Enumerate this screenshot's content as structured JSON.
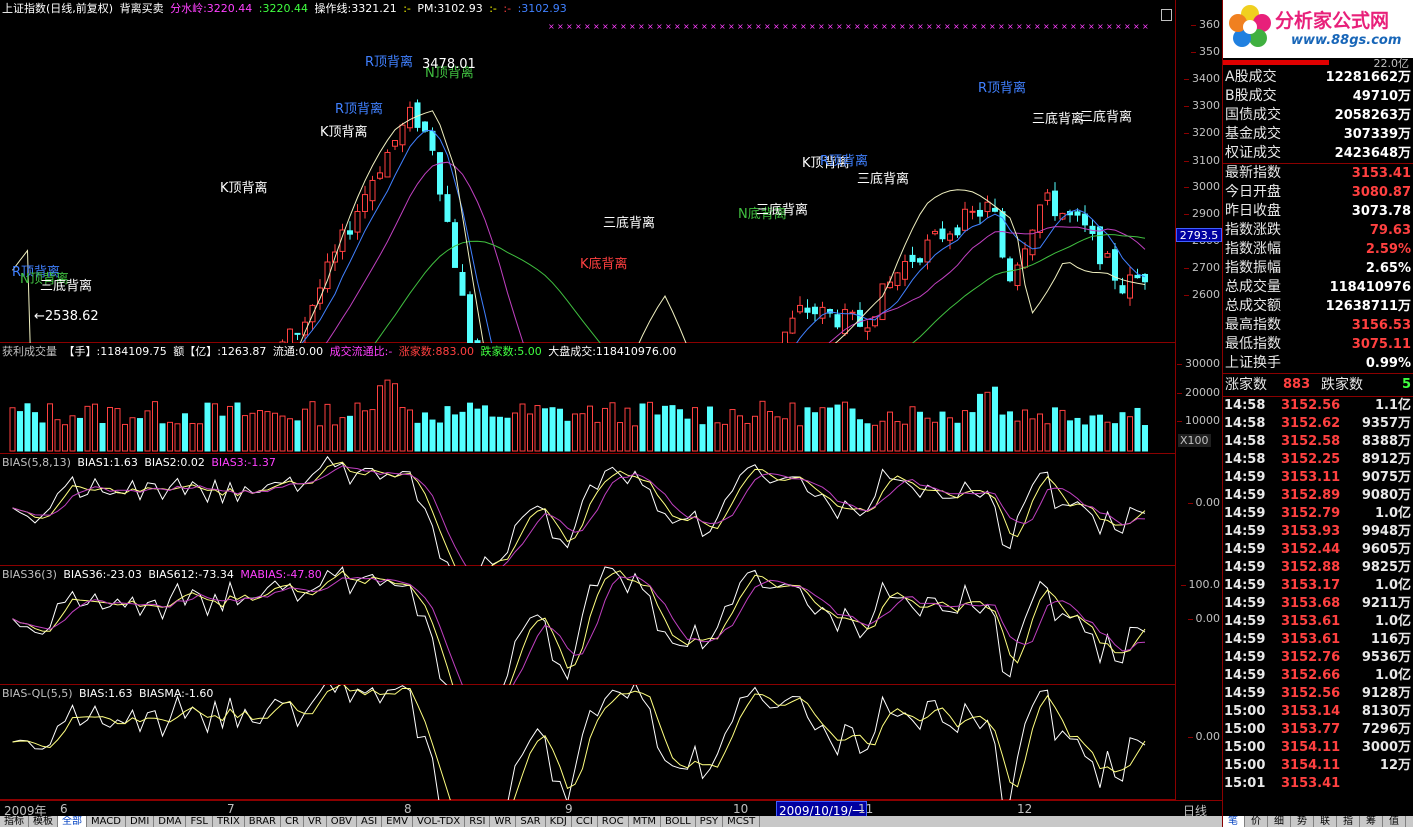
{
  "main": {
    "title": "上证指数(日线,前复权)",
    "formula": "背离买卖",
    "items": [
      {
        "label": "分水岭:3220.44",
        "color": "#ff40ff"
      },
      {
        "label": ":3220.44",
        "color": "#40ff40"
      },
      {
        "label": "操作线:3321.21",
        "color": "#ffffff"
      },
      {
        "label": ":-",
        "color": "#ffff00"
      },
      {
        "label": "PM:3102.93",
        "color": "#ffffff"
      },
      {
        "label": ":-",
        "color": "#ffff00"
      },
      {
        "label": ":-",
        "color": "#ff4040"
      },
      {
        "label": ":3102.93",
        "color": "#4080ff"
      }
    ],
    "axis_ticks": [
      "360",
      "350",
      "3400",
      "3300",
      "3200",
      "3100",
      "3000",
      "2900",
      "2800",
      "2700",
      "2600"
    ],
    "current_price_badge": "2793.5",
    "annotations": {
      "high_label": "3478.01",
      "low_label": "←2538.62",
      "r_top": "R顶背离",
      "k_top": "K顶背离",
      "n_top": "N顶背离",
      "three_bottom": "三底背离",
      "k_bottom": "K底背离",
      "n_bottom": "N底背离"
    }
  },
  "volume": {
    "items": [
      {
        "label": "获利成交量",
        "color": "#c0c0c0"
      },
      {
        "label": "【手】:1184109.75",
        "color": "#ffffff"
      },
      {
        "label": "额【亿】:1263.87",
        "color": "#ffffff"
      },
      {
        "label": "流通:0.00",
        "color": "#ffffff"
      },
      {
        "label": "成交流通比:-",
        "color": "#ff40ff"
      },
      {
        "label": "涨家数:883.00",
        "color": "#ff4040"
      },
      {
        "label": "跌家数:5.00",
        "color": "#40ff40"
      },
      {
        "label": "大盘成交:118410976.00",
        "color": "#ffffff"
      }
    ],
    "axis_ticks": [
      "30000",
      "20000",
      "10000"
    ],
    "unit": "X100"
  },
  "bias": {
    "items": [
      {
        "label": "BIAS(5,8,13)",
        "color": "#c0c0c0"
      },
      {
        "label": "BIAS1:1.63",
        "color": "#ffffff"
      },
      {
        "label": "BIAS2:0.02",
        "color": "#ffffff"
      },
      {
        "label": "BIAS3:-1.37",
        "color": "#ff40ff"
      }
    ],
    "axis_ticks": [
      "0.00"
    ]
  },
  "bias36": {
    "items": [
      {
        "label": "BIAS36(3)",
        "color": "#c0c0c0"
      },
      {
        "label": "BIAS36:-23.03",
        "color": "#ffffff"
      },
      {
        "label": "BIAS612:-73.34",
        "color": "#ffffff"
      },
      {
        "label": "MABIAS:-47.80",
        "color": "#ff40ff"
      }
    ],
    "axis_ticks": [
      "100.0",
      "0.00"
    ]
  },
  "biasql": {
    "items": [
      {
        "label": "BIAS-QL(5,5)",
        "color": "#c0c0c0"
      },
      {
        "label": "BIAS:1.63",
        "color": "#ffffff"
      },
      {
        "label": "BIASMA:-1.60",
        "color": "#ffffff"
      }
    ],
    "axis_ticks": [
      "0.00"
    ]
  },
  "dates": {
    "year": "2009年",
    "months": [
      "6",
      "7",
      "8",
      "9",
      "10",
      "11",
      "12"
    ],
    "cursor_date": "2009/10/19/一",
    "period": "日线"
  },
  "right_panel": {
    "logo_title": "分析家公式网",
    "logo_url": "www.88gs.com",
    "top_label": "22.0亿",
    "market": [
      {
        "k": "A股成交",
        "v": "12281662万",
        "color": "#ffffff"
      },
      {
        "k": "B股成交",
        "v": "49710万",
        "color": "#ffffff"
      },
      {
        "k": "国债成交",
        "v": "2058263万",
        "color": "#ffffff"
      },
      {
        "k": "基金成交",
        "v": "307339万",
        "color": "#ffffff"
      },
      {
        "k": "权证成交",
        "v": "2423648万",
        "color": "#ffffff"
      }
    ],
    "index": [
      {
        "k": "最新指数",
        "v": "3153.41",
        "color": "#ff4040"
      },
      {
        "k": "今日开盘",
        "v": "3080.87",
        "color": "#ff4040"
      },
      {
        "k": "昨日收盘",
        "v": "3073.78",
        "color": "#ffffff"
      },
      {
        "k": "指数涨跌",
        "v": "79.63",
        "color": "#ff4040"
      },
      {
        "k": "指数涨幅",
        "v": "2.59%",
        "color": "#ff4040"
      },
      {
        "k": "指数振幅",
        "v": "2.65%",
        "color": "#ffffff"
      },
      {
        "k": "总成交量",
        "v": "118410976",
        "color": "#ffffff"
      },
      {
        "k": "总成交额",
        "v": "12638711万",
        "color": "#ffffff"
      },
      {
        "k": "最高指数",
        "v": "3156.53",
        "color": "#ff4040"
      },
      {
        "k": "最低指数",
        "v": "3075.11",
        "color": "#ff4040"
      },
      {
        "k": "上证换手",
        "v": "0.99%",
        "color": "#ffffff"
      }
    ],
    "breadth": {
      "up_label": "涨家数",
      "up": "883",
      "down_label": "跌家数",
      "down": "5"
    },
    "ticks": [
      {
        "t": "14:58",
        "p": "3152.56",
        "q": "1.1亿"
      },
      {
        "t": "14:58",
        "p": "3152.62",
        "q": "9357万"
      },
      {
        "t": "14:58",
        "p": "3152.58",
        "q": "8388万"
      },
      {
        "t": "14:58",
        "p": "3152.25",
        "q": "8912万"
      },
      {
        "t": "14:59",
        "p": "3153.11",
        "q": "9075万"
      },
      {
        "t": "14:59",
        "p": "3152.89",
        "q": "9080万"
      },
      {
        "t": "14:59",
        "p": "3152.79",
        "q": "1.0亿"
      },
      {
        "t": "14:59",
        "p": "3153.93",
        "q": "9948万"
      },
      {
        "t": "14:59",
        "p": "3152.44",
        "q": "9605万"
      },
      {
        "t": "14:59",
        "p": "3152.88",
        "q": "9825万"
      },
      {
        "t": "14:59",
        "p": "3153.17",
        "q": "1.0亿"
      },
      {
        "t": "14:59",
        "p": "3153.68",
        "q": "9211万"
      },
      {
        "t": "14:59",
        "p": "3153.61",
        "q": "1.0亿"
      },
      {
        "t": "14:59",
        "p": "3153.61",
        "q": "116万"
      },
      {
        "t": "14:59",
        "p": "3152.76",
        "q": "9536万"
      },
      {
        "t": "14:59",
        "p": "3152.66",
        "q": "1.0亿"
      },
      {
        "t": "14:59",
        "p": "3152.56",
        "q": "9128万"
      },
      {
        "t": "15:00",
        "p": "3153.14",
        "q": "8130万"
      },
      {
        "t": "15:00",
        "p": "3153.77",
        "q": "7296万"
      },
      {
        "t": "15:00",
        "p": "3154.11",
        "q": "3000万"
      },
      {
        "t": "15:00",
        "p": "3154.11",
        "q": "12万"
      },
      {
        "t": "15:01",
        "p": "3153.41",
        "q": ""
      }
    ]
  },
  "bottom_tabs": [
    "指标",
    "模板",
    "全部",
    "MACD",
    "DMI",
    "DMA",
    "FSL",
    "TRIX",
    "BRAR",
    "CR",
    "VR",
    "OBV",
    "ASI",
    "EMV",
    "VOL-TDX",
    "RSI",
    "WR",
    "SAR",
    "KDJ",
    "CCI",
    "ROC",
    "MTM",
    "BOLL",
    "PSY",
    "MCST"
  ],
  "right_tabs": [
    "笔",
    "价",
    "细",
    "势",
    "联",
    "指",
    "筹",
    "值"
  ],
  "colors": {
    "up": "#ff4040",
    "down": "#54ffff",
    "grid": "#8b0000",
    "ma_magenta": "#c040c0",
    "ma_green": "#40c040",
    "ma_blue": "#4080ff"
  }
}
